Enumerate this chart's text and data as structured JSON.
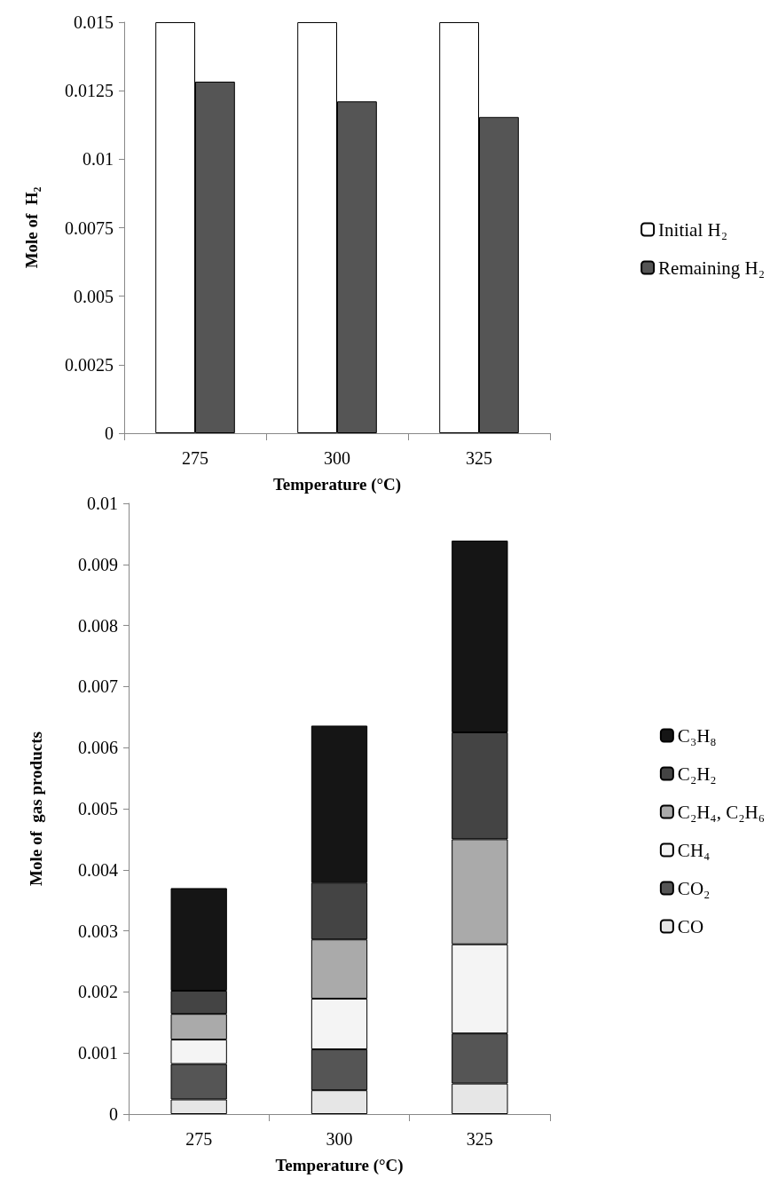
{
  "chart_data": [
    {
      "type": "bar",
      "categories": [
        "275",
        "300",
        "325"
      ],
      "xlabel": "Temperature (°C)",
      "ylabel": "Mole of  H₂",
      "ylim": [
        0,
        0.015
      ],
      "yticks": [
        0,
        0.0025,
        0.005,
        0.0075,
        0.01,
        0.0125,
        0.015
      ],
      "grid": false,
      "legend": "right",
      "series": [
        {
          "name": "Initial H₂",
          "color": "#ffffff",
          "values": [
            0.015,
            0.015,
            0.015
          ]
        },
        {
          "name": "Remaining H₂",
          "color": "#555555",
          "values": [
            0.01283,
            0.01211,
            0.01154
          ]
        }
      ]
    },
    {
      "type": "bar",
      "stacked": true,
      "categories": [
        "275",
        "300",
        "325"
      ],
      "xlabel": "Temperature (°C)",
      "ylabel": "Mole of  gas products",
      "ylim": [
        0,
        0.01
      ],
      "yticks": [
        0,
        0.001,
        0.002,
        0.003,
        0.004,
        0.005,
        0.006,
        0.007,
        0.008,
        0.009,
        0.01
      ],
      "grid": false,
      "legend": "right",
      "series": [
        {
          "name": "CO",
          "color": "#e6e6e6",
          "values": [
            0.00024,
            0.00039,
            0.0005
          ]
        },
        {
          "name": "CO₂",
          "color": "#555555",
          "values": [
            0.00058,
            0.00067,
            0.00082
          ]
        },
        {
          "name": "CH₄",
          "color": "#f4f4f4",
          "values": [
            0.0004,
            0.00083,
            0.00146
          ]
        },
        {
          "name": "C₂H₄, C₂H₆",
          "color": "#aaaaaa",
          "values": [
            0.00042,
            0.00097,
            0.00172
          ]
        },
        {
          "name": "C₂H₂",
          "color": "#444444",
          "values": [
            0.00038,
            0.00093,
            0.00175
          ]
        },
        {
          "name": "C₃H₈",
          "color": "#151515",
          "values": [
            0.00168,
            0.00257,
            0.00314
          ]
        }
      ]
    }
  ]
}
